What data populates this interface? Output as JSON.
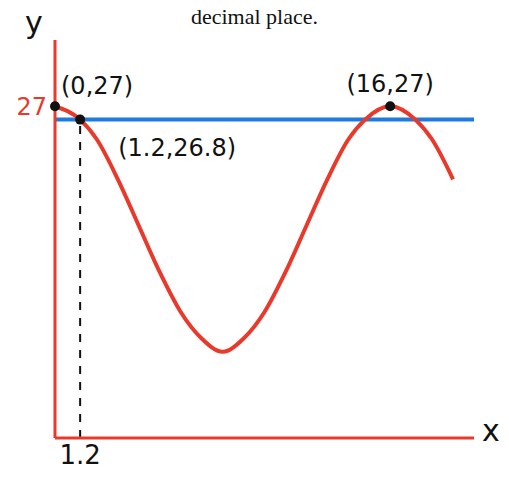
{
  "chart_data": {
    "type": "line",
    "title": "decimal place.",
    "x_label": "x",
    "y_label": "y",
    "x": [
      0,
      1.2,
      2,
      3,
      4,
      5,
      6,
      7,
      8,
      9,
      10,
      11,
      12,
      13,
      14,
      14.8,
      16,
      17.2,
      18,
      19
    ],
    "values": [
      27,
      26.8,
      26.5,
      25.9,
      25.2,
      24.5,
      23.9,
      23.5,
      23.3,
      23.5,
      23.9,
      24.5,
      25.2,
      25.9,
      26.5,
      26.8,
      27,
      26.8,
      26.5,
      25.9
    ],
    "color": "#e8392b",
    "xlim": [
      0,
      20
    ],
    "ylim": [
      22,
      28
    ],
    "xticks": [
      1.2
    ],
    "yticks": [
      27
    ],
    "grid": false,
    "hline": {
      "value": 26.8,
      "color": "#1f7ae0"
    },
    "annotations": [
      {
        "x": 0,
        "y": 27,
        "text": "(0,27)"
      },
      {
        "x": 1.2,
        "y": 26.8,
        "text": "(1.2,26.8)",
        "line_style": "dashed"
      },
      {
        "x": 16,
        "y": 27,
        "text": "(16,27)"
      }
    ]
  }
}
